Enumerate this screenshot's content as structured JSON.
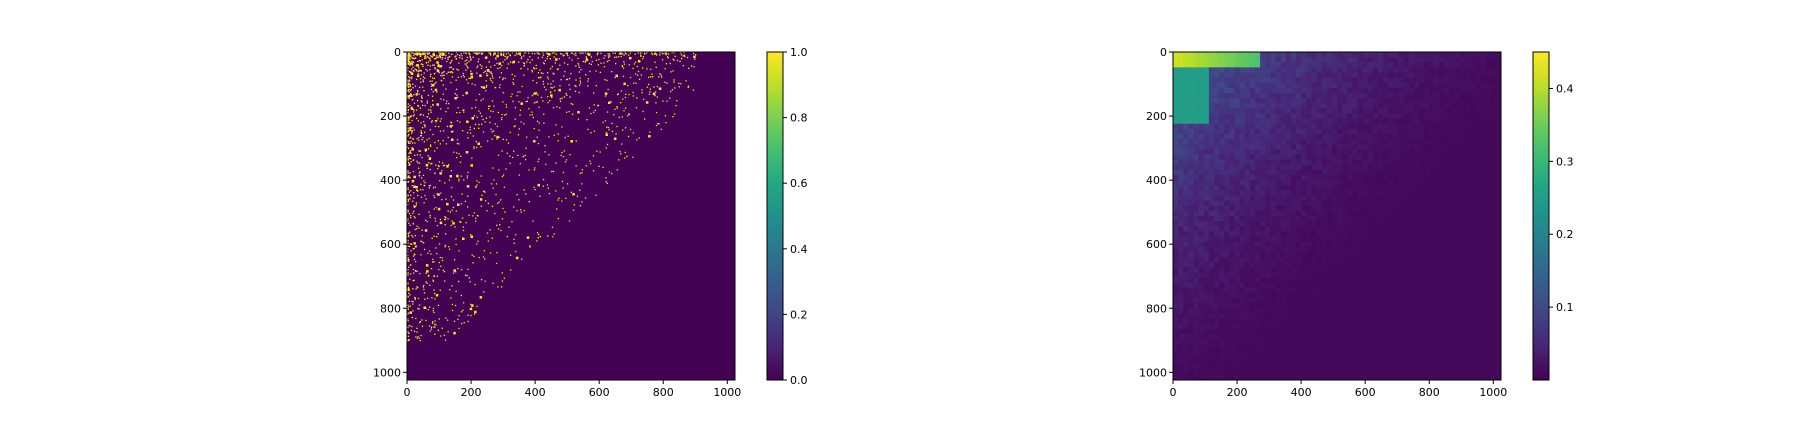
{
  "chart_data": [
    {
      "type": "heatmap",
      "title": "",
      "xlabel": "",
      "ylabel": "",
      "xlim": [
        0,
        1024
      ],
      "ylim": [
        1024,
        0
      ],
      "x_ticks": [
        0,
        200,
        400,
        600,
        800,
        1000
      ],
      "y_ticks": [
        0,
        200,
        400,
        600,
        800,
        1000
      ],
      "colormap": "viridis",
      "value_range": [
        0.0,
        1.0
      ],
      "colorbar_ticks": [
        "0.0",
        "0.2",
        "0.4",
        "0.6",
        "0.8",
        "1.0"
      ],
      "background_value": 0.0,
      "description_values": {
        "nonzero_points_value": 1.0,
        "density_falloff_extent": 900
      }
    },
    {
      "type": "heatmap",
      "title": "",
      "xlabel": "",
      "ylabel": "",
      "xlim": [
        0,
        1024
      ],
      "ylim": [
        1024,
        0
      ],
      "x_ticks": [
        0,
        200,
        400,
        600,
        800,
        1000
      ],
      "y_ticks": [
        0,
        200,
        400,
        600,
        800,
        1000
      ],
      "colormap": "viridis",
      "value_range": [
        0.0,
        0.45
      ],
      "colorbar_ticks": [
        "0.1",
        "0.2",
        "0.3",
        "0.4"
      ],
      "colorbar_tick_values": [
        0.1,
        0.2,
        0.3,
        0.4
      ],
      "background_value": 0.01,
      "description_values": {
        "top_band_value": 0.42,
        "top_left_block_value": 0.25,
        "top_left_block_extent": [
          0,
          110,
          0,
          220
        ]
      }
    }
  ]
}
